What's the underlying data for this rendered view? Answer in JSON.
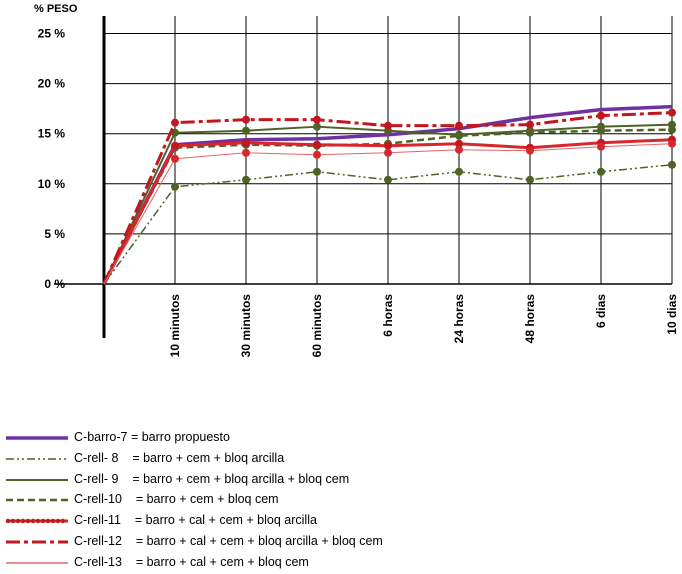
{
  "chart_data": {
    "type": "line",
    "ylabel": "% PESO",
    "ylim": [
      0,
      27
    ],
    "yticks": [
      {
        "value": 0,
        "label": "0 %"
      },
      {
        "value": 5,
        "label": "5 %"
      },
      {
        "value": 10,
        "label": "10 %"
      },
      {
        "value": 15,
        "label": "15 %"
      },
      {
        "value": 20,
        "label": "20 %"
      },
      {
        "value": 25,
        "label": "25 %"
      }
    ],
    "x_categories": [
      "",
      "10  minutos",
      "30  minutos",
      "60  minutos",
      "6 horas",
      "24  horas",
      "48  horas",
      "6 dias",
      "10 dias"
    ],
    "grid": true,
    "legend_position": "bottom",
    "series": [
      {
        "name": "C-barro-7",
        "description": "C-barro-7 = barro propuesto",
        "color": "#7030a0",
        "dash": "",
        "width": 3.5,
        "markers": false,
        "marker_color": "#7030a0",
        "values": [
          0,
          13.9,
          14.4,
          14.5,
          14.9,
          15.5,
          16.6,
          17.4,
          17.7
        ]
      },
      {
        "name": "C-rell- 8",
        "description": "C-rell- 8    = barro + cem + bloq arcilla",
        "color": "#4f6228",
        "dash": "8,3,2,3,2,3",
        "width": 1.5,
        "markers": true,
        "marker_color": "#4f6228",
        "values": [
          0,
          9.7,
          10.4,
          11.2,
          10.4,
          11.2,
          10.4,
          11.2,
          11.9
        ]
      },
      {
        "name": "C-rell- 9",
        "description": "C-rell- 9    = barro + cem + bloq arcilla + bloq cem",
        "color": "#4f6228",
        "dash": "",
        "width": 2,
        "markers": true,
        "marker_color": "#4f6228",
        "values": [
          0,
          15.1,
          15.3,
          15.7,
          15.3,
          14.9,
          15.3,
          15.7,
          15.9
        ]
      },
      {
        "name": "C-rell-10",
        "description": "C-rell-10    = barro + cem + bloq cem",
        "color": "#4f6228",
        "dash": "7,4",
        "width": 2.5,
        "markers": true,
        "marker_color": "#4f6228",
        "values": [
          0,
          13.6,
          13.9,
          13.8,
          14.0,
          14.8,
          15.1,
          15.3,
          15.4
        ]
      },
      {
        "name": "C-rell-11",
        "description": "C-rell-11    = barro + cal + cem + bloq arcilla",
        "color": "#d7262c",
        "dash": "",
        "width": 3,
        "markers": true,
        "marker_color": "#c0181e",
        "values": [
          0,
          13.8,
          14.1,
          13.9,
          13.8,
          14.0,
          13.6,
          14.1,
          14.4
        ]
      },
      {
        "name": "C-rell-12",
        "description": "C-rell-12    = barro + cal + cem + bloq arcilla + bloq cem",
        "color": "#c0181e",
        "dash": "14,4,4,4",
        "width": 3,
        "markers": true,
        "marker_color": "#c0181e",
        "values": [
          0,
          16.1,
          16.4,
          16.4,
          15.8,
          15.8,
          15.9,
          16.8,
          17.1
        ]
      },
      {
        "name": "C-rell-13",
        "description": "C-rell-13    = barro + cal + cem + bloq cem",
        "color": "#e06666",
        "dash": "",
        "width": 1,
        "markers": true,
        "marker_color": "#d7262c",
        "values": [
          0,
          12.5,
          13.1,
          12.9,
          13.1,
          13.4,
          13.3,
          13.7,
          14.0
        ]
      }
    ]
  }
}
